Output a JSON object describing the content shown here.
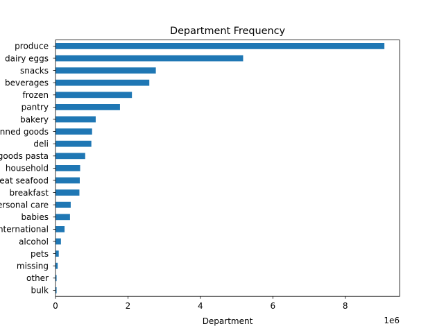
{
  "chart_data": {
    "type": "bar",
    "orientation": "horizontal",
    "title": "Department Frequency",
    "xlabel": "Department",
    "ylabel": "",
    "x_offset_label": "1e6",
    "xlim": [
      0,
      9.5
    ],
    "x_ticks": [
      0,
      2,
      4,
      6,
      8
    ],
    "x_tick_labels": [
      "0",
      "2",
      "4",
      "6",
      "8"
    ],
    "value_scale": 1000000,
    "bar_color": "#1f77b4",
    "grid": false,
    "legend": "none",
    "categories": [
      "produce",
      "dairy eggs",
      "snacks",
      "beverages",
      "frozen",
      "pantry",
      "bakery",
      "canned goods",
      "deli",
      "dry goods pasta",
      "household",
      "meat seafood",
      "breakfast",
      "personal care",
      "babies",
      "international",
      "alcohol",
      "pets",
      "missing",
      "other",
      "bulk"
    ],
    "values": [
      9080000,
      5180000,
      2770000,
      2590000,
      2110000,
      1780000,
      1110000,
      1010000,
      990000,
      820000,
      680000,
      670000,
      660000,
      420000,
      400000,
      250000,
      150000,
      90000,
      60000,
      30000,
      30000
    ]
  }
}
